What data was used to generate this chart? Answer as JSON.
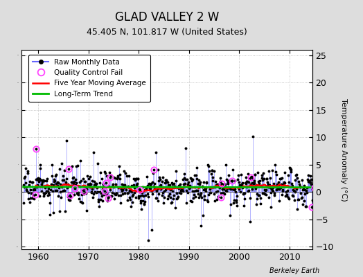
{
  "title": "GLAD VALLEY 2 W",
  "subtitle": "45.405 N, 101.817 W (United States)",
  "ylabel": "Temperature Anomaly (°C)",
  "credit": "Berkeley Earth",
  "year_start": 1957,
  "year_end": 2015,
  "ylim": [
    -10.5,
    26
  ],
  "yticks": [
    -10,
    -5,
    0,
    5,
    10,
    15,
    20,
    25
  ],
  "xticks": [
    1960,
    1970,
    1980,
    1990,
    2000,
    2010
  ],
  "raw_color": "#6666FF",
  "marker_color": "#000000",
  "qc_color": "#FF44FF",
  "moving_avg_color": "#FF0000",
  "trend_color": "#00BB00",
  "plot_bg": "#FFFFFF",
  "fig_bg": "#DDDDDD",
  "seed": 17
}
